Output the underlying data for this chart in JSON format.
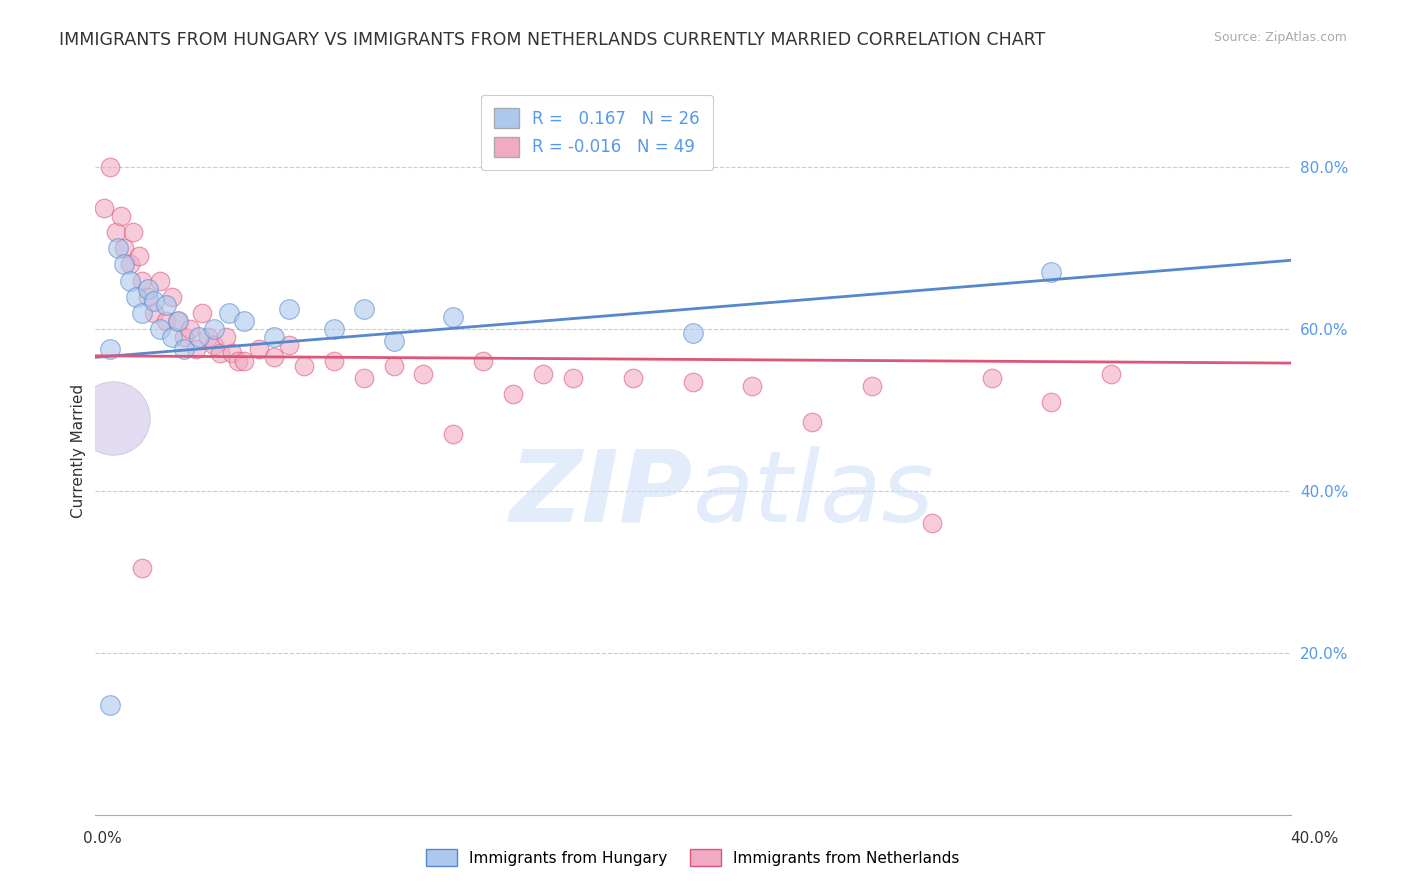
{
  "title": "IMMIGRANTS FROM HUNGARY VS IMMIGRANTS FROM NETHERLANDS CURRENTLY MARRIED CORRELATION CHART",
  "source": "Source: ZipAtlas.com",
  "ylabel": "Currently Married",
  "xlim": [
    0.0,
    0.4
  ],
  "ylim": [
    0.0,
    0.9
  ],
  "hungary_R": 0.167,
  "hungary_N": 26,
  "netherlands_R": -0.016,
  "netherlands_N": 49,
  "hungary_color": "#adc8ed",
  "netherlands_color": "#f0aac4",
  "hungary_line_color": "#5588cc",
  "netherlands_line_color": "#dd5577",
  "background_color": "#ffffff",
  "grid_color": "#cccccc",
  "right_tick_color": "#5599ee",
  "title_fontsize": 12.5,
  "label_fontsize": 11,
  "tick_fontsize": 11,
  "legend_fontsize": 12,
  "hun_line_y0": 0.565,
  "hun_line_y1": 0.685,
  "neth_line_y0": 0.567,
  "neth_line_y1": 0.558,
  "hun_scatter_x": [
    0.005,
    0.008,
    0.01,
    0.012,
    0.014,
    0.016,
    0.018,
    0.02,
    0.022,
    0.024,
    0.026,
    0.028,
    0.03,
    0.035,
    0.04,
    0.045,
    0.05,
    0.06,
    0.065,
    0.08,
    0.09,
    0.1,
    0.12,
    0.2,
    0.32,
    0.005
  ],
  "hun_scatter_y": [
    0.575,
    0.7,
    0.68,
    0.66,
    0.64,
    0.62,
    0.65,
    0.635,
    0.6,
    0.63,
    0.59,
    0.61,
    0.575,
    0.59,
    0.6,
    0.62,
    0.61,
    0.59,
    0.625,
    0.6,
    0.625,
    0.585,
    0.615,
    0.595,
    0.67,
    0.135
  ],
  "neth_scatter_x": [
    0.003,
    0.005,
    0.007,
    0.009,
    0.01,
    0.012,
    0.013,
    0.015,
    0.016,
    0.018,
    0.02,
    0.022,
    0.024,
    0.026,
    0.028,
    0.03,
    0.032,
    0.034,
    0.036,
    0.038,
    0.04,
    0.042,
    0.044,
    0.046,
    0.048,
    0.05,
    0.055,
    0.06,
    0.065,
    0.07,
    0.08,
    0.09,
    0.1,
    0.11,
    0.12,
    0.13,
    0.14,
    0.15,
    0.16,
    0.18,
    0.2,
    0.22,
    0.24,
    0.26,
    0.28,
    0.3,
    0.32,
    0.34,
    0.016
  ],
  "neth_scatter_y": [
    0.75,
    0.8,
    0.72,
    0.74,
    0.7,
    0.68,
    0.72,
    0.69,
    0.66,
    0.64,
    0.62,
    0.66,
    0.61,
    0.64,
    0.61,
    0.59,
    0.6,
    0.575,
    0.62,
    0.59,
    0.58,
    0.57,
    0.59,
    0.57,
    0.56,
    0.56,
    0.575,
    0.565,
    0.58,
    0.555,
    0.56,
    0.54,
    0.555,
    0.545,
    0.47,
    0.56,
    0.52,
    0.545,
    0.54,
    0.54,
    0.535,
    0.53,
    0.485,
    0.53,
    0.36,
    0.54,
    0.51,
    0.545,
    0.305
  ],
  "hun_point_sizes": [
    300,
    250,
    200,
    200,
    200,
    200,
    200,
    200,
    200,
    200,
    200,
    200,
    200,
    200,
    200,
    200,
    200,
    200,
    200,
    200,
    200,
    200,
    200,
    200,
    200,
    200
  ],
  "neth_point_sizes": [
    200,
    200,
    200,
    200,
    200,
    200,
    200,
    200,
    200,
    200,
    200,
    200,
    200,
    200,
    200,
    200,
    200,
    200,
    200,
    200,
    200,
    200,
    200,
    200,
    200,
    200,
    200,
    200,
    200,
    200,
    200,
    200,
    200,
    200,
    200,
    200,
    200,
    200,
    200,
    200,
    200,
    200,
    200,
    200,
    200,
    200,
    200,
    200,
    200
  ]
}
